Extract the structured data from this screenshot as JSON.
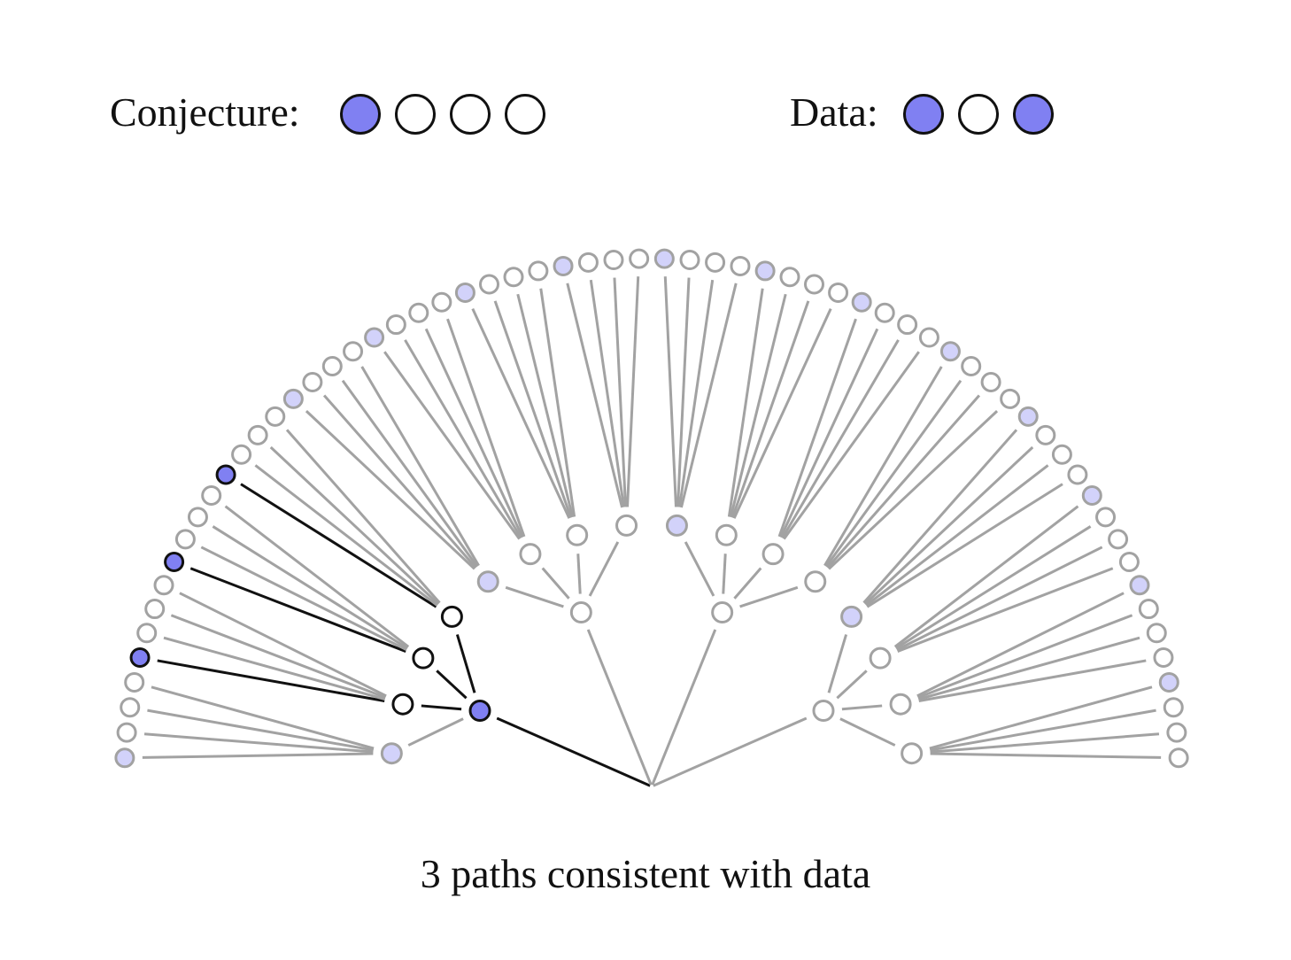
{
  "header": {
    "conjecture_label": "Conjecture:",
    "data_label": "Data:"
  },
  "conjecture": [
    "blue",
    "white",
    "white",
    "white"
  ],
  "data": [
    "blue",
    "white",
    "blue"
  ],
  "caption": "3 paths consistent with data",
  "colors": {
    "blue": "#8080f2",
    "blue_faded": "#d2d2fa",
    "white": "#ffffff",
    "stroke_active": "#111111",
    "stroke_faded": "#a2a2a2"
  },
  "tree": {
    "levels": 3,
    "branching": 4,
    "consistent_paths": [
      [
        0,
        1,
        0
      ],
      [
        0,
        2,
        0
      ],
      [
        0,
        3,
        0
      ]
    ]
  }
}
